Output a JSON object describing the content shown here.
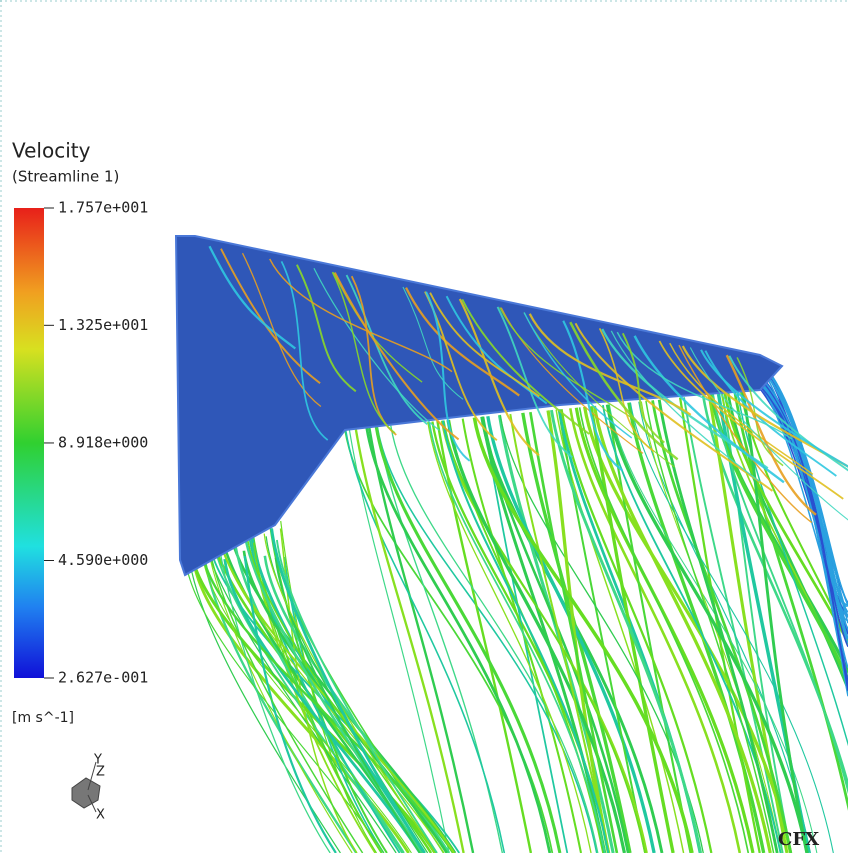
{
  "legend": {
    "title": "Velocity",
    "subtitle": "(Streamline 1)",
    "ticks": [
      {
        "value": 17.57,
        "label": "1.757e+001"
      },
      {
        "value": 13.25,
        "label": "1.325e+001"
      },
      {
        "value": 8.918,
        "label": "8.918e+000"
      },
      {
        "value": 4.59,
        "label": "4.590e+000"
      },
      {
        "value": 0.2627,
        "label": "2.627e-001"
      }
    ],
    "unit": "[m s^-1]"
  },
  "axes": {
    "y": "Y",
    "z": "Z",
    "x": "X"
  },
  "logo": "CFX"
}
